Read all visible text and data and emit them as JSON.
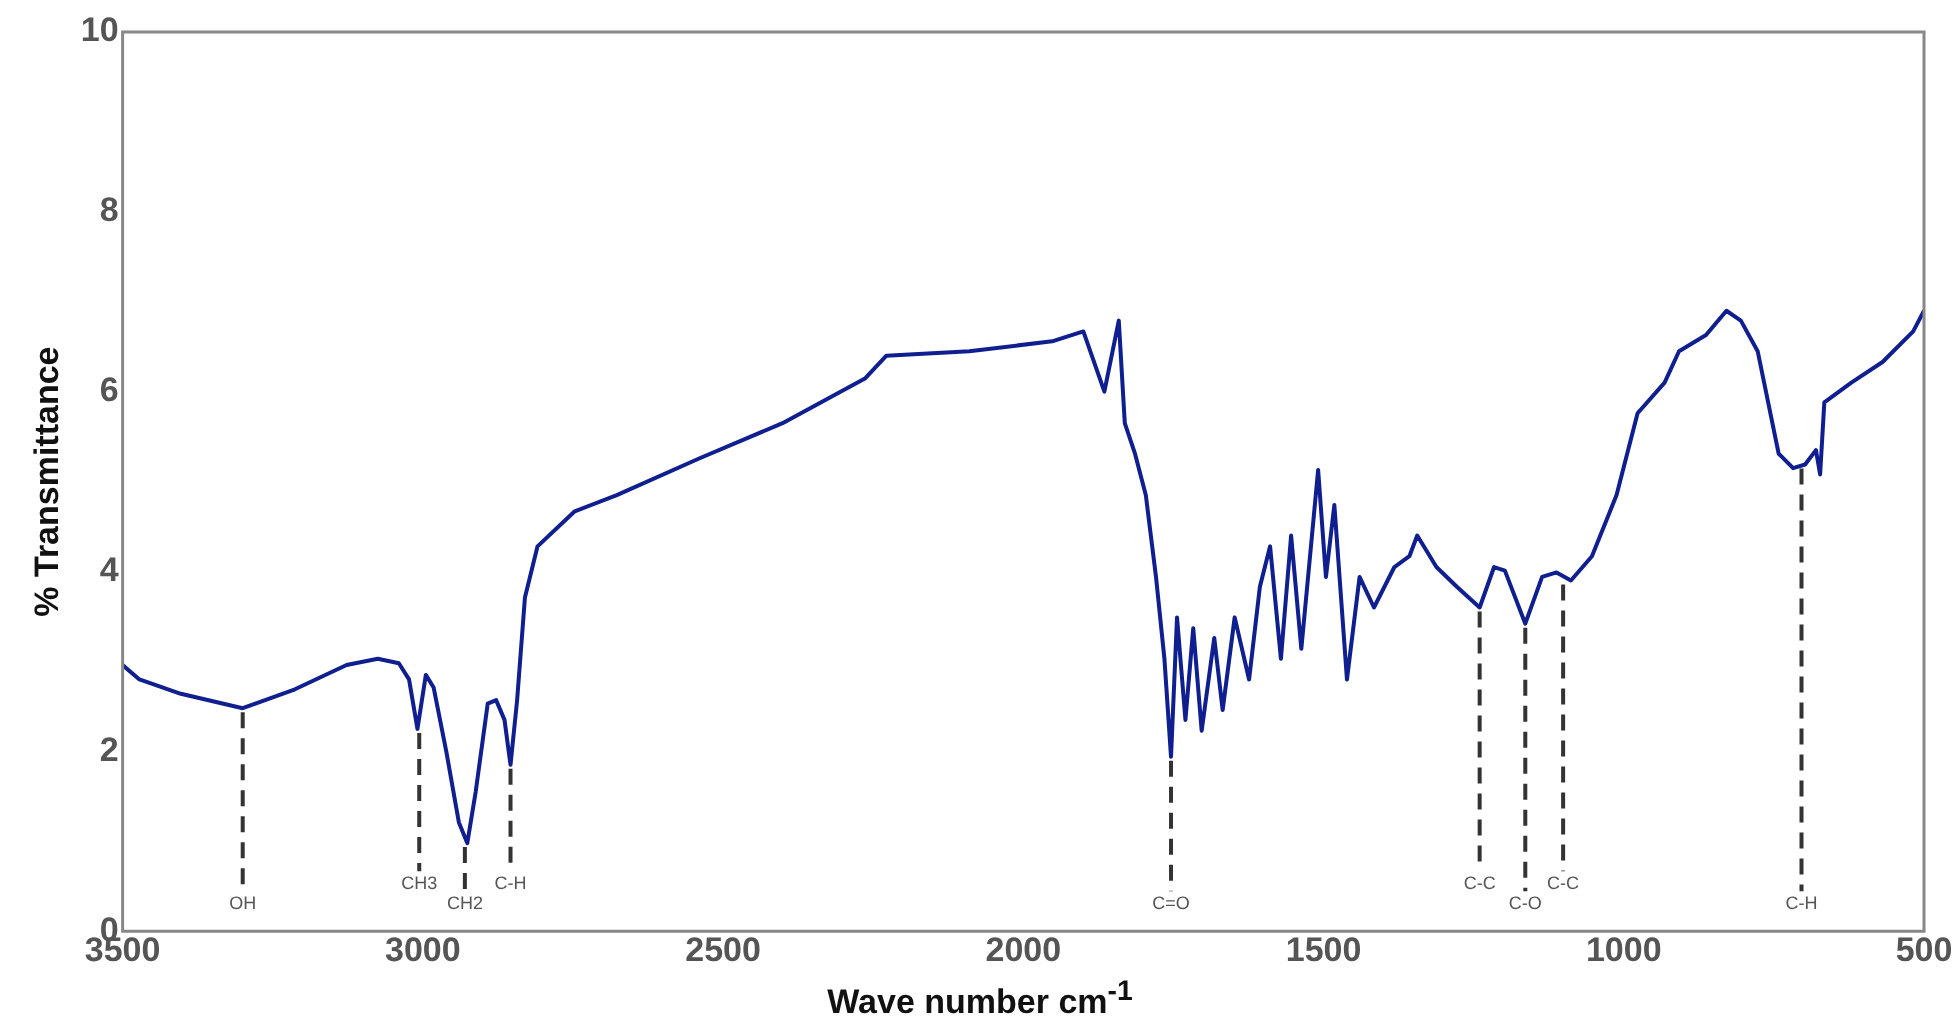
{
  "chart_data": {
    "type": "line",
    "xlabel": "Wave number cm$^{-1}$",
    "ylabel": "% Transmittance",
    "xlim": [
      3500,
      500
    ],
    "xticks": [
      3500,
      3000,
      2500,
      2000,
      1500,
      1000,
      500
    ],
    "ylim": [
      0,
      10
    ],
    "yticks": [
      0,
      2,
      4,
      6,
      8,
      10
    ],
    "grid": false,
    "legend": false,
    "marker": "none",
    "line_style": "solid",
    "series": [
      {
        "color": "#0f1f8f",
        "x": [
          3500,
          3472,
          3403,
          3300,
          3213,
          3127,
          3075,
          3040,
          3023,
          3009,
          2995,
          2982,
          2961,
          2940,
          2926,
          2912,
          2892,
          2878,
          2864,
          2854,
          2843,
          2830,
          2809,
          2747,
          2677,
          2539,
          2401,
          2263,
          2228,
          2090,
          1952,
          1900,
          1865,
          1841,
          1831,
          1814,
          1796,
          1779,
          1765,
          1754,
          1744,
          1730,
          1717,
          1703,
          1682,
          1668,
          1648,
          1624,
          1606,
          1589,
          1571,
          1554,
          1537,
          1509,
          1496,
          1482,
          1461,
          1440,
          1416,
          1382,
          1357,
          1344,
          1312,
          1278,
          1240,
          1216,
          1198,
          1164,
          1136,
          1112,
          1088,
          1053,
          1012,
          977,
          932,
          908,
          863,
          829,
          805,
          777,
          742,
          718,
          698,
          680,
          673,
          666,
          621,
          569,
          518,
          500
        ],
        "values": [
          2.96,
          2.8,
          2.64,
          2.48,
          2.69,
          2.96,
          3.03,
          2.98,
          2.8,
          2.25,
          2.85,
          2.71,
          2.0,
          1.21,
          0.98,
          1.55,
          2.53,
          2.57,
          2.35,
          1.85,
          2.57,
          3.71,
          4.28,
          4.67,
          4.85,
          5.26,
          5.65,
          6.15,
          6.4,
          6.45,
          6.56,
          6.67,
          6.0,
          6.79,
          5.65,
          5.31,
          4.85,
          3.94,
          3.03,
          1.94,
          3.49,
          2.35,
          3.37,
          2.23,
          3.26,
          2.46,
          3.49,
          2.8,
          3.83,
          4.28,
          3.03,
          4.4,
          3.14,
          5.13,
          3.94,
          4.74,
          2.8,
          3.94,
          3.6,
          4.05,
          4.17,
          4.4,
          4.05,
          3.83,
          3.6,
          4.05,
          4.01,
          3.42,
          3.94,
          3.99,
          3.9,
          4.17,
          4.85,
          5.76,
          6.1,
          6.45,
          6.63,
          6.9,
          6.79,
          6.45,
          5.31,
          5.15,
          5.19,
          5.35,
          5.08,
          5.88,
          6.1,
          6.33,
          6.67,
          6.9
        ]
      }
    ],
    "annotations": [
      {
        "text": "OH",
        "x": 3300,
        "y": 2.48
      },
      {
        "text": "CH3",
        "x": 3006,
        "y": 2.25
      },
      {
        "text": "CH2",
        "x": 2930,
        "y": 0.98
      },
      {
        "text": "C-H",
        "x": 2854,
        "y": 1.85
      },
      {
        "text": "C=O",
        "x": 1754,
        "y": 1.94
      },
      {
        "text": "C-C",
        "x": 1240,
        "y": 3.6
      },
      {
        "text": "C-O",
        "x": 1164,
        "y": 3.42
      },
      {
        "text": "C-C",
        "x": 1101,
        "y": 3.9
      },
      {
        "text": "C-H",
        "x": 704,
        "y": 5.19
      }
    ]
  }
}
